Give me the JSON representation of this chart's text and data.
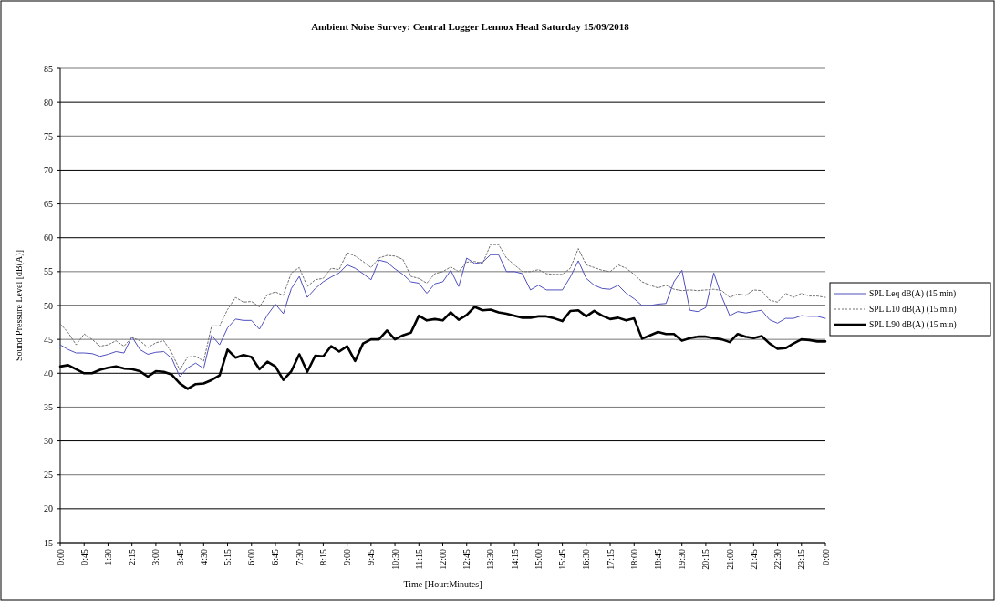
{
  "chart_data": {
    "type": "line",
    "title": "Ambient  Noise Survey: Central Logger Lennox Head Saturday  15/09/2018",
    "xlabel": "Time [Hour:Minutes]",
    "ylabel": "Sound Pressure Level  [dB(A)]",
    "x": [
      0,
      0.25,
      0.5,
      0.75,
      1,
      1.25,
      1.5,
      1.75,
      2,
      2.25,
      2.5,
      2.75,
      3,
      3.25,
      3.5,
      3.75,
      4,
      4.25,
      4.5,
      4.75,
      5,
      5.25,
      5.5,
      5.75,
      6,
      6.25,
      6.5,
      6.75,
      7,
      7.25,
      7.5,
      7.75,
      8,
      8.25,
      8.5,
      8.75,
      9,
      9.25,
      9.5,
      9.75,
      10,
      10.25,
      10.5,
      10.75,
      11,
      11.25,
      11.5,
      11.75,
      12,
      12.25,
      12.5,
      12.75,
      13,
      13.25,
      13.5,
      13.75,
      14,
      14.25,
      14.5,
      14.75,
      15,
      15.25,
      15.5,
      15.75,
      16,
      16.25,
      16.5,
      16.75,
      17,
      17.25,
      17.5,
      17.75,
      18,
      18.25,
      18.5,
      18.75,
      19,
      19.25,
      19.5,
      19.75,
      20,
      20.25,
      20.5,
      20.75,
      21,
      21.25,
      21.5,
      21.75,
      22,
      22.25,
      22.5,
      22.75,
      23,
      23.25,
      23.5,
      23.75,
      24
    ],
    "series": [
      {
        "name": "SPL Leq dB(A) (15 min)",
        "color": "#5050c0",
        "line_style": "solid",
        "values": [
          44.2,
          43.5,
          43,
          43,
          42.9,
          42.5,
          42.8,
          43.2,
          43,
          45.4,
          43.5,
          42.8,
          43.1,
          43.2,
          42.2,
          39.5,
          40.8,
          41.5,
          40.7,
          45.6,
          44.2,
          46.7,
          48,
          47.8,
          47.8,
          46.5,
          48.6,
          50.2,
          48.8,
          52.5,
          54.3,
          51.2,
          52.5,
          53.5,
          54.2,
          54.8,
          56,
          55.5,
          54.7,
          53.8,
          56.7,
          56.4,
          55.4,
          54.6,
          53.5,
          53.3,
          51.8,
          53.2,
          53.5,
          55.2,
          52.8,
          57,
          56.2,
          56.4,
          57.5,
          57.5,
          55,
          55,
          54.7,
          52.3,
          53,
          52.3,
          52.3,
          52.3,
          54.2,
          56.6,
          54,
          53,
          52.5,
          52.4,
          53,
          51.8,
          51,
          50,
          50,
          50.2,
          50.3,
          53.5,
          55.2,
          49.3,
          49.1,
          49.7,
          54.8,
          51.3,
          48.5,
          49.1,
          48.9,
          49.1,
          49.3,
          47.9,
          47.4,
          48.1,
          48.1,
          48.5,
          48.4,
          48.4,
          48.1
        ]
      },
      {
        "name": "SPL L10 dB(A) (15 min)",
        "color": "#707070",
        "line_style": "dotted",
        "values": [
          47.3,
          46,
          44.2,
          45.8,
          45,
          44,
          44.2,
          44.8,
          44,
          45.3,
          44.8,
          43.8,
          44.5,
          44.8,
          43,
          40.5,
          42.4,
          42.5,
          41.8,
          47,
          47,
          49.4,
          51.2,
          50.5,
          50.6,
          49.8,
          51.6,
          52,
          51.5,
          54.8,
          55.6,
          52.8,
          53.8,
          54,
          55.5,
          55.3,
          57.8,
          57.3,
          56.5,
          55.6,
          57,
          57.4,
          57.3,
          56.8,
          54.3,
          54,
          53.3,
          54.7,
          55,
          55.7,
          55,
          56.4,
          56.5,
          56.2,
          59,
          59,
          57,
          56,
          55,
          55,
          55.3,
          54.7,
          54.6,
          54.6,
          55.5,
          58.4,
          56,
          55.6,
          55.2,
          55,
          56,
          55.5,
          54.6,
          53.5,
          53,
          52.6,
          53,
          52.4,
          52.2,
          52.3,
          52.2,
          52.3,
          52.4,
          52.2,
          51.2,
          51.7,
          51.5,
          52.3,
          52.2,
          50.8,
          50.5,
          51.8,
          51.2,
          51.8,
          51.4,
          51.4,
          51.2
        ]
      },
      {
        "name": "SPL L90 dB(A) (15 min)",
        "color": "#000000",
        "line_style": "solid",
        "values": [
          41,
          41.2,
          40.6,
          40,
          40,
          40.5,
          40.8,
          41,
          40.7,
          40.6,
          40.3,
          39.5,
          40.3,
          40.2,
          39.8,
          38.5,
          37.7,
          38.4,
          38.5,
          39,
          39.7,
          43.5,
          42.3,
          42.7,
          42.4,
          40.6,
          41.7,
          41,
          39,
          40.3,
          42.8,
          40.2,
          42.6,
          42.5,
          44,
          43.2,
          44,
          41.8,
          44.4,
          45,
          45,
          46.3,
          45,
          45.6,
          46,
          48.5,
          47.8,
          48,
          47.8,
          49,
          47.9,
          48.6,
          49.8,
          49.3,
          49.4,
          49,
          48.8,
          48.5,
          48.2,
          48.2,
          48.4,
          48.4,
          48.1,
          47.7,
          49.2,
          49.3,
          48.4,
          49.2,
          48.5,
          48,
          48.2,
          47.8,
          48.1,
          45.1,
          45.6,
          46.1,
          45.8,
          45.8,
          44.8,
          45.2,
          45.4,
          45.4,
          45.2,
          45,
          44.6,
          45.8,
          45.4,
          45.2,
          45.5,
          44.4,
          43.6,
          43.7,
          44.4,
          45,
          44.9,
          44.7,
          44.7
        ]
      }
    ],
    "xlim": [
      0,
      24
    ],
    "xticks": [
      {
        "value": 0,
        "label": "0:00"
      },
      {
        "value": 0.75,
        "label": "0:45"
      },
      {
        "value": 1.5,
        "label": "1:30"
      },
      {
        "value": 2.25,
        "label": "2:15"
      },
      {
        "value": 3,
        "label": "3:00"
      },
      {
        "value": 3.75,
        "label": "3:45"
      },
      {
        "value": 4.5,
        "label": "4:30"
      },
      {
        "value": 5.25,
        "label": "5:15"
      },
      {
        "value": 6,
        "label": "6:00"
      },
      {
        "value": 6.75,
        "label": "6:45"
      },
      {
        "value": 7.5,
        "label": "7:30"
      },
      {
        "value": 8.25,
        "label": "8:15"
      },
      {
        "value": 9,
        "label": "9:00"
      },
      {
        "value": 9.75,
        "label": "9:45"
      },
      {
        "value": 10.5,
        "label": "10:30"
      },
      {
        "value": 11.25,
        "label": "11:15"
      },
      {
        "value": 12,
        "label": "12:00"
      },
      {
        "value": 12.75,
        "label": "12:45"
      },
      {
        "value": 13.5,
        "label": "13:30"
      },
      {
        "value": 14.25,
        "label": "14:15"
      },
      {
        "value": 15,
        "label": "15:00"
      },
      {
        "value": 15.75,
        "label": "15:45"
      },
      {
        "value": 16.5,
        "label": "16:30"
      },
      {
        "value": 17.25,
        "label": "17:15"
      },
      {
        "value": 18,
        "label": "18:00"
      },
      {
        "value": 18.75,
        "label": "18:45"
      },
      {
        "value": 19.5,
        "label": "19:30"
      },
      {
        "value": 20.25,
        "label": "20:15"
      },
      {
        "value": 21,
        "label": "21:00"
      },
      {
        "value": 21.75,
        "label": "21:45"
      },
      {
        "value": 22.5,
        "label": "22:30"
      },
      {
        "value": 23.25,
        "label": "23:15"
      },
      {
        "value": 24,
        "label": "0:00"
      }
    ],
    "ylim": [
      15,
      85
    ],
    "yticks": [
      15,
      20,
      25,
      30,
      35,
      40,
      45,
      50,
      55,
      60,
      65,
      70,
      75,
      80,
      85
    ],
    "grid": "y",
    "legend": "right"
  }
}
